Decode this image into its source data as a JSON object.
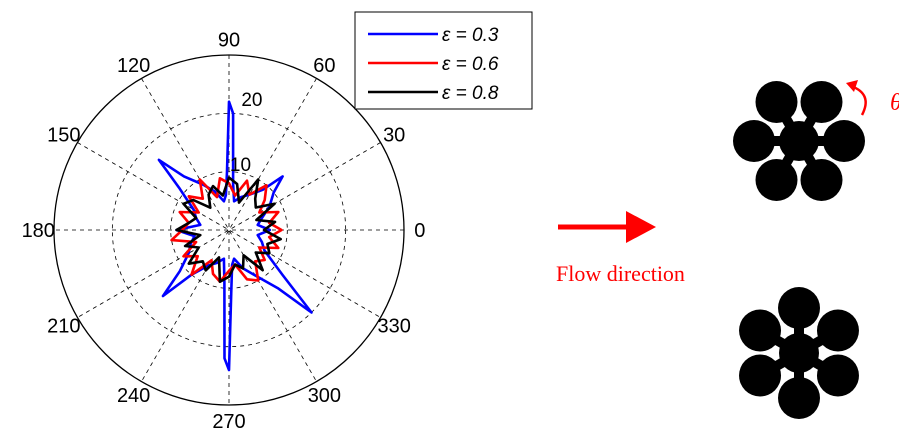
{
  "chart_data": {
    "type": "polar-line",
    "angle_ticks": [
      "0",
      "30",
      "60",
      "90",
      "120",
      "150",
      "180",
      "210",
      "240",
      "270",
      "300",
      "330"
    ],
    "angle_tick_values": [
      0,
      30,
      60,
      90,
      120,
      150,
      180,
      210,
      240,
      270,
      300,
      330
    ],
    "radial_ticks": [
      "10",
      "20"
    ],
    "radial_tick_values": [
      10,
      20
    ],
    "rmax": 30,
    "grid": true,
    "legend_position": "top-right",
    "series": [
      {
        "name": "ε = 0.3",
        "color": "#0000ff",
        "angles": [
          0,
          10,
          20,
          30,
          40,
          45,
          50,
          60,
          70,
          80,
          85,
          88,
          90,
          92,
          95,
          100,
          110,
          120,
          130,
          135,
          140,
          150,
          160,
          170,
          180,
          190,
          200,
          210,
          220,
          225,
          230,
          240,
          250,
          260,
          265,
          268,
          270,
          272,
          275,
          280,
          290,
          300,
          310,
          315,
          320,
          330,
          340,
          350
        ],
        "r": [
          7,
          5,
          6,
          8,
          10,
          13,
          9,
          7,
          6,
          5,
          8,
          20,
          22,
          10,
          6,
          5,
          7,
          9,
          12,
          17,
          11,
          7,
          6,
          5,
          9,
          6,
          7,
          8,
          11,
          16,
          10,
          7,
          6,
          5,
          9,
          22,
          24,
          11,
          6,
          5,
          7,
          9,
          13,
          20,
          12,
          7,
          6,
          5
        ]
      },
      {
        "name": "ε = 0.6",
        "color": "#ff0000",
        "angles": [
          0,
          10,
          20,
          30,
          40,
          50,
          60,
          70,
          80,
          90,
          100,
          110,
          120,
          130,
          140,
          150,
          160,
          170,
          180,
          190,
          200,
          210,
          220,
          230,
          240,
          250,
          260,
          270,
          280,
          290,
          300,
          310,
          320,
          330,
          340,
          350
        ],
        "r": [
          9,
          7,
          9,
          6,
          8,
          10,
          7,
          9,
          6,
          8,
          9,
          6,
          10,
          7,
          9,
          6,
          9,
          7,
          8,
          10,
          6,
          9,
          7,
          10,
          6,
          8,
          9,
          7,
          6,
          9,
          10,
          7,
          8,
          6,
          9,
          7
        ]
      },
      {
        "name": "ε = 0.8",
        "color": "#000000",
        "angles": [
          0,
          10,
          20,
          30,
          40,
          50,
          60,
          70,
          80,
          90,
          100,
          110,
          120,
          130,
          140,
          150,
          160,
          170,
          180,
          190,
          200,
          210,
          220,
          230,
          240,
          250,
          260,
          270,
          280,
          290,
          300,
          310,
          320,
          330,
          340,
          350
        ],
        "r": [
          6,
          8,
          5,
          9,
          6,
          7,
          10,
          5,
          8,
          9,
          6,
          8,
          7,
          5,
          8,
          9,
          6,
          7,
          9,
          5,
          8,
          6,
          9,
          7,
          8,
          5,
          9,
          8,
          6,
          7,
          5,
          9,
          6,
          8,
          7,
          9
        ]
      }
    ]
  },
  "diagram": {
    "arrow_label": "Flow direction",
    "theta_label": "θ",
    "accent_color": "#ff0000"
  }
}
